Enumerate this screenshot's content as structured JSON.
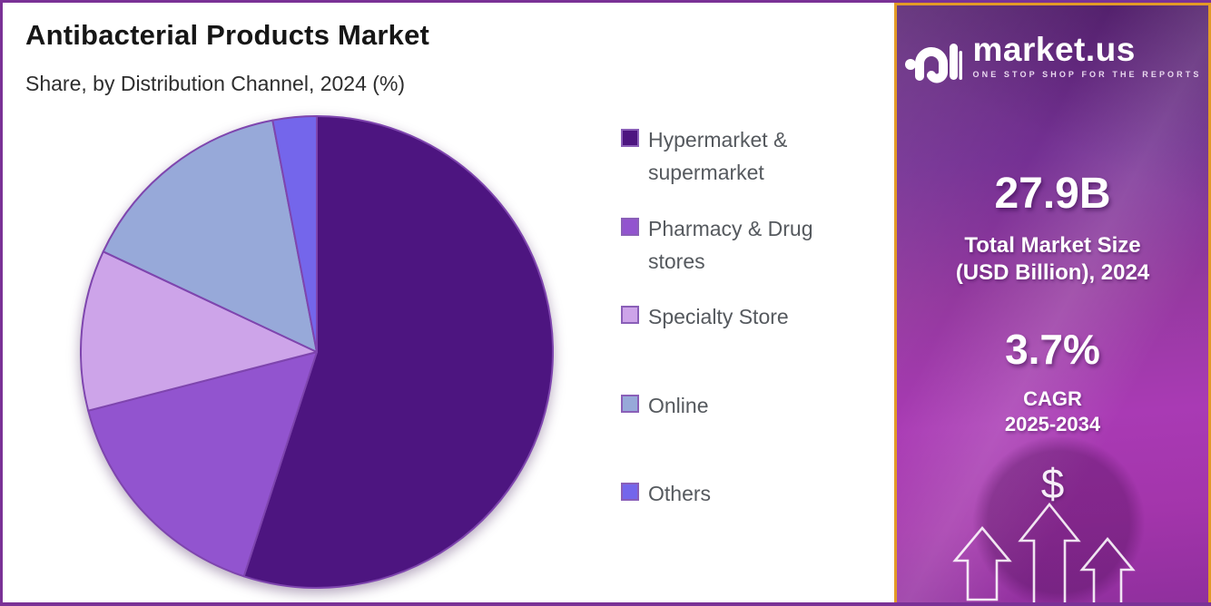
{
  "frame": {
    "border_color": "#7a3196",
    "background": "#ffffff"
  },
  "header": {
    "title": "Antibacterial Products Market",
    "subtitle": "Share, by Distribution Channel, 2024 (%)"
  },
  "chart_data": {
    "type": "pie",
    "title": "Antibacterial Products Market",
    "subtitle": "Share, by Distribution Channel, 2024 (%)",
    "unit": "%",
    "categories": [
      "Hypermarket & supermarket",
      "Pharmacy & Drug stores",
      "Specialty Store",
      "Online",
      "Others"
    ],
    "values": [
      55,
      16,
      11,
      15,
      3
    ],
    "colors": [
      "#4d1580",
      "#9254cf",
      "#cda4e9",
      "#97a9d9",
      "#7466eb"
    ],
    "slice_stroke": "#7e45ae",
    "start_angle_deg": 0,
    "direction": "clockwise",
    "legend_position": "right",
    "center": [
      346,
      385
    ],
    "radius": 260
  },
  "sidebar": {
    "logo": {
      "brand": "market.us",
      "tagline": "ONE STOP SHOP FOR THE REPORTS",
      "mark": "market-us-logo-mark"
    },
    "stats": [
      {
        "value": "27.9B",
        "label_line1": "Total Market Size",
        "label_line2": "(USD Billion), 2024"
      },
      {
        "value": "3.7%",
        "label_line1": "CAGR",
        "label_line2": "2025-2034"
      }
    ],
    "icons": {
      "dollar": "$",
      "arrows": "three-up-arrows"
    },
    "colors": {
      "border": "#e39a26",
      "bg_top": "#5e2878",
      "bg_bottom": "#a93ab4"
    }
  }
}
